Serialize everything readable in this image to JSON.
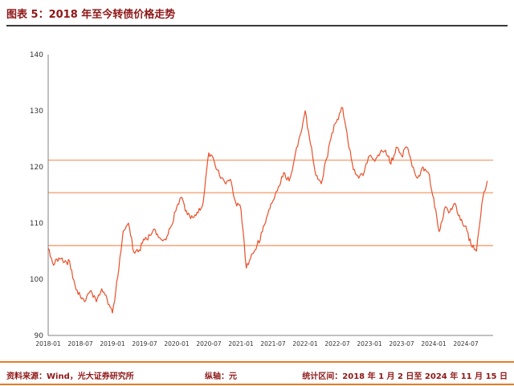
{
  "header": {
    "title": "图表 5：2018 年至今转债价格走势"
  },
  "footer": {
    "source": "资料来源：Wind，光大证券研究所",
    "axis_note": "纵轴：元",
    "period": "统计区间：2018 年 1 月 2 日至 2024 年 11 月 15 日"
  },
  "colors": {
    "heading_text": "#8e1717",
    "title_rule": "#3a3a3a",
    "footer_rule": "#e87c28",
    "axis_line": "#808080",
    "tick_text": "#333333"
  },
  "chart_data": {
    "type": "line",
    "title": "2018 年至今转债价格走势",
    "xlabel": "",
    "ylabel": "元",
    "ylim": [
      90,
      140
    ],
    "yticks": [
      90,
      100,
      110,
      120,
      130,
      140
    ],
    "xtick_labels": [
      "2018-01",
      "2018-07",
      "2019-01",
      "2019-07",
      "2020-01",
      "2020-07",
      "2021-01",
      "2021-07",
      "2022-01",
      "2022-07",
      "2023-01",
      "2023-07",
      "2024-01",
      "2024-07"
    ],
    "grid": false,
    "legend": "none",
    "line_color": "#e8502a",
    "reference_line_color": "#f2a477",
    "reference_lines": [
      121.2,
      115.4,
      106.0
    ],
    "frequency": "monthly",
    "start_month": "2018-01",
    "end_month": "2024-11",
    "volatility_hint": 0.55,
    "series": [
      {
        "name": "转债价格",
        "values": [
          105.5,
          102.5,
          103.8,
          103.0,
          103.2,
          99.0,
          97.0,
          96.2,
          98.0,
          96.0,
          98.3,
          96.5,
          94.0,
          100.5,
          108.5,
          110.0,
          104.8,
          105.2,
          107.0,
          107.8,
          108.8,
          107.2,
          107.0,
          109.5,
          112.8,
          114.5,
          111.5,
          111.0,
          111.8,
          114.0,
          122.5,
          121.0,
          118.5,
          117.2,
          117.8,
          113.8,
          112.5,
          102.0,
          104.5,
          106.0,
          108.5,
          111.5,
          114.0,
          116.5,
          119.0,
          117.5,
          121.5,
          125.5,
          130.0,
          124.0,
          118.5,
          117.0,
          121.5,
          126.0,
          128.5,
          130.5,
          124.5,
          119.5,
          118.0,
          119.0,
          122.0,
          121.0,
          122.5,
          123.0,
          120.5,
          123.5,
          122.0,
          123.5,
          120.0,
          118.0,
          120.0,
          119.0,
          114.5,
          108.5,
          112.5,
          112.0,
          113.5,
          110.5,
          109.5,
          106.0,
          105.0,
          113.5,
          117.5
        ]
      }
    ]
  }
}
